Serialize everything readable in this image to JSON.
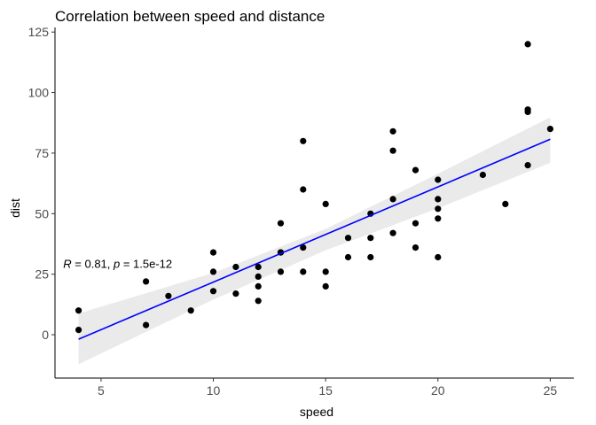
{
  "chart_data": {
    "type": "scatter",
    "title": "Correlation between speed and distance",
    "xlabel": "speed",
    "ylabel": "dist",
    "xlim": [
      2.95,
      26.05
    ],
    "ylim": [
      -17.9,
      126.9
    ],
    "xticks": [
      5,
      10,
      15,
      20,
      25
    ],
    "yticks": [
      0,
      25,
      50,
      75,
      100,
      125
    ],
    "grid": false,
    "legend": "none",
    "annotation": {
      "R_symbol": "R",
      "R_text": " = 0.81, ",
      "p_symbol": "p",
      "p_text": " = 1.5e-12",
      "x": 3,
      "y": 29
    },
    "points": [
      {
        "x": 4,
        "y": 2
      },
      {
        "x": 4,
        "y": 10
      },
      {
        "x": 7,
        "y": 4
      },
      {
        "x": 7,
        "y": 22
      },
      {
        "x": 8,
        "y": 16
      },
      {
        "x": 9,
        "y": 10
      },
      {
        "x": 10,
        "y": 18
      },
      {
        "x": 10,
        "y": 26
      },
      {
        "x": 10,
        "y": 34
      },
      {
        "x": 11,
        "y": 17
      },
      {
        "x": 11,
        "y": 28
      },
      {
        "x": 12,
        "y": 14
      },
      {
        "x": 12,
        "y": 20
      },
      {
        "x": 12,
        "y": 24
      },
      {
        "x": 12,
        "y": 28
      },
      {
        "x": 13,
        "y": 26
      },
      {
        "x": 13,
        "y": 34
      },
      {
        "x": 13,
        "y": 34
      },
      {
        "x": 13,
        "y": 46
      },
      {
        "x": 14,
        "y": 26
      },
      {
        "x": 14,
        "y": 36
      },
      {
        "x": 14,
        "y": 60
      },
      {
        "x": 14,
        "y": 80
      },
      {
        "x": 15,
        "y": 20
      },
      {
        "x": 15,
        "y": 26
      },
      {
        "x": 15,
        "y": 54
      },
      {
        "x": 16,
        "y": 32
      },
      {
        "x": 16,
        "y": 40
      },
      {
        "x": 17,
        "y": 32
      },
      {
        "x": 17,
        "y": 40
      },
      {
        "x": 17,
        "y": 50
      },
      {
        "x": 18,
        "y": 42
      },
      {
        "x": 18,
        "y": 56
      },
      {
        "x": 18,
        "y": 76
      },
      {
        "x": 18,
        "y": 84
      },
      {
        "x": 19,
        "y": 36
      },
      {
        "x": 19,
        "y": 46
      },
      {
        "x": 19,
        "y": 68
      },
      {
        "x": 20,
        "y": 32
      },
      {
        "x": 20,
        "y": 48
      },
      {
        "x": 20,
        "y": 52
      },
      {
        "x": 20,
        "y": 56
      },
      {
        "x": 20,
        "y": 64
      },
      {
        "x": 22,
        "y": 66
      },
      {
        "x": 23,
        "y": 54
      },
      {
        "x": 24,
        "y": 70
      },
      {
        "x": 24,
        "y": 92
      },
      {
        "x": 24,
        "y": 93
      },
      {
        "x": 24,
        "y": 120
      },
      {
        "x": 25,
        "y": 85
      }
    ],
    "fit": {
      "method": "linear",
      "intercept": -17.579,
      "slope": 3.932,
      "x_range": [
        4,
        25
      ],
      "ci_lower": [
        [
          4,
          -12.2
        ],
        [
          10,
          14.5
        ],
        [
          15,
          34.9
        ],
        [
          20,
          52.2
        ],
        [
          25,
          71
        ]
      ],
      "ci_upper": [
        [
          4,
          8.8
        ],
        [
          10,
          25.5
        ],
        [
          15,
          43.7
        ],
        [
          20,
          66.5
        ],
        [
          25,
          89.8
        ]
      ]
    },
    "colors": {
      "points": "#000000",
      "fit_line": "#0000ff",
      "ci_band": "#d9d9d9",
      "axis": "#000000"
    }
  }
}
